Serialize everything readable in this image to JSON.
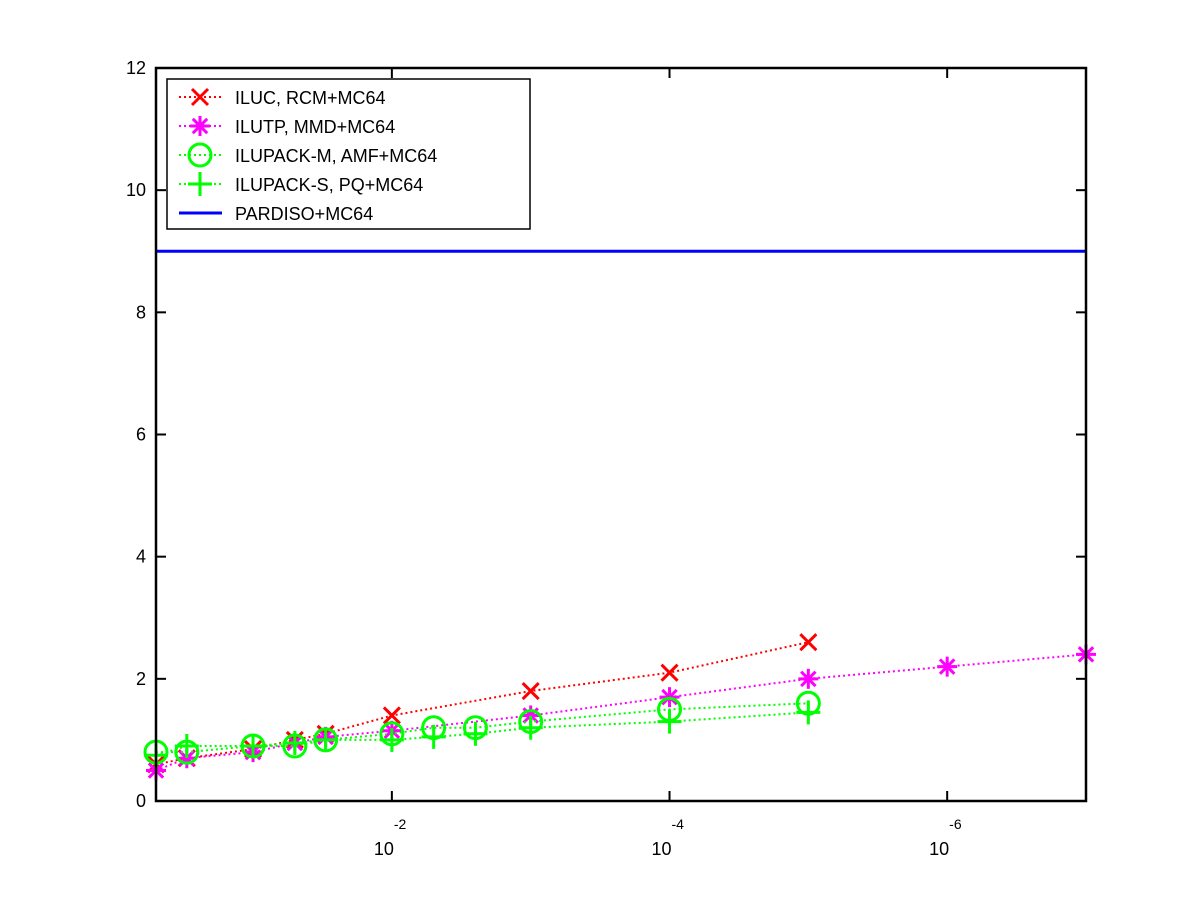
{
  "chart_data": {
    "type": "line",
    "title": "",
    "xlabel": "",
    "ylabel": "",
    "x_scale": "log-reversed",
    "xlim": [
      0.5,
      1e-07
    ],
    "ylim": [
      0,
      12
    ],
    "y_ticks": [
      0,
      2,
      4,
      6,
      8,
      10,
      12
    ],
    "x_ticks": [
      {
        "value": 0.01,
        "base": "10",
        "exponent": "-2"
      },
      {
        "value": 0.0001,
        "base": "10",
        "exponent": "-4"
      },
      {
        "value": 1e-06,
        "base": "10",
        "exponent": "-6"
      }
    ],
    "grid": false,
    "legend_position": "top-left",
    "series": [
      {
        "name": "ILUC, RCM+MC64",
        "color": "#ff0000",
        "marker": "x",
        "line": "dotted",
        "points": [
          [
            0.5,
            0.6
          ],
          [
            0.3,
            0.7
          ],
          [
            0.1,
            0.85
          ],
          [
            0.05,
            1.0
          ],
          [
            0.03,
            1.1
          ],
          [
            0.01,
            1.4
          ],
          [
            0.001,
            1.8
          ],
          [
            0.0001,
            2.1
          ],
          [
            1e-05,
            2.6
          ]
        ]
      },
      {
        "name": "ILUTP, MMD+MC64",
        "color": "#ff00ff",
        "marker": "asterisk",
        "line": "dotted",
        "points": [
          [
            0.5,
            0.5
          ],
          [
            0.3,
            0.7
          ],
          [
            0.1,
            0.8
          ],
          [
            0.05,
            0.95
          ],
          [
            0.03,
            1.05
          ],
          [
            0.01,
            1.15
          ],
          [
            0.001,
            1.4
          ],
          [
            0.0001,
            1.7
          ],
          [
            1e-05,
            2.0
          ],
          [
            1e-06,
            2.2
          ],
          [
            1e-07,
            2.4
          ]
        ]
      },
      {
        "name": "ILUPACK-M, AMF+MC64",
        "color": "#00ff00",
        "marker": "circle",
        "line": "dotted",
        "points": [
          [
            0.5,
            0.8
          ],
          [
            0.3,
            0.8
          ],
          [
            0.1,
            0.9
          ],
          [
            0.05,
            0.9
          ],
          [
            0.03,
            1.0
          ],
          [
            0.01,
            1.1
          ],
          [
            0.005,
            1.2
          ],
          [
            0.0025,
            1.2
          ],
          [
            0.001,
            1.3
          ],
          [
            0.0001,
            1.5
          ],
          [
            1e-05,
            1.6
          ]
        ]
      },
      {
        "name": "ILUPACK-S, PQ+MC64",
        "color": "#00ff00",
        "marker": "plus",
        "line": "dotted",
        "points": [
          [
            0.5,
            0.75
          ],
          [
            0.3,
            0.9
          ],
          [
            0.1,
            0.9
          ],
          [
            0.05,
            0.95
          ],
          [
            0.03,
            1.0
          ],
          [
            0.01,
            1.0
          ],
          [
            0.005,
            1.05
          ],
          [
            0.0025,
            1.1
          ],
          [
            0.001,
            1.2
          ],
          [
            0.0001,
            1.3
          ],
          [
            1e-05,
            1.45
          ]
        ]
      },
      {
        "name": "PARDISO+MC64",
        "color": "#0000ff",
        "marker": "none",
        "line": "solid",
        "points": [
          [
            0.5,
            9.0
          ],
          [
            1e-07,
            9.0
          ]
        ]
      }
    ]
  }
}
